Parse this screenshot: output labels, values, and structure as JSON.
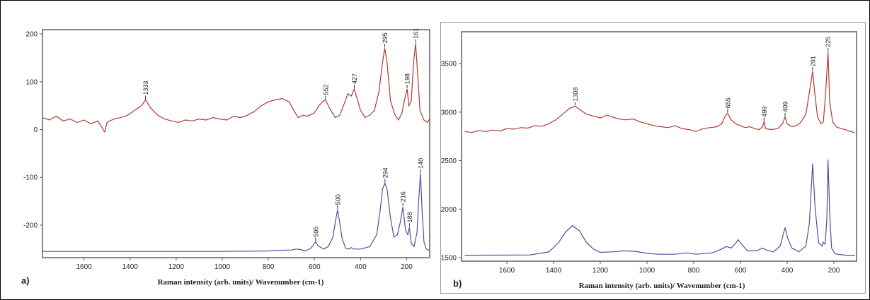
{
  "chart_data": [
    {
      "type": "line",
      "panel_label": "a)",
      "xlabel": "Raman intensity (arb. units)/ Wavenumber (cm-1)",
      "xlim": [
        1780,
        100
      ],
      "xticks": [
        1600,
        1400,
        1200,
        1000,
        800,
        600,
        400,
        200
      ],
      "ylim": [
        -268,
        209
      ],
      "yticks": [
        200,
        100,
        0,
        -100,
        -200
      ],
      "series": [
        {
          "color": "#b03a2e",
          "x": [
            1780,
            1750,
            1720,
            1690,
            1660,
            1630,
            1600,
            1570,
            1540,
            1510,
            1500,
            1470,
            1440,
            1410,
            1380,
            1350,
            1333,
            1310,
            1280,
            1250,
            1220,
            1190,
            1160,
            1130,
            1100,
            1070,
            1040,
            1010,
            980,
            950,
            920,
            890,
            860,
            830,
            800,
            770,
            740,
            710,
            690,
            670,
            650,
            630,
            600,
            580,
            565,
            552,
            535,
            510,
            490,
            470,
            455,
            440,
            427,
            415,
            400,
            380,
            360,
            340,
            320,
            305,
            295,
            285,
            270,
            250,
            235,
            220,
            210,
            198,
            190,
            180,
            170,
            161,
            150,
            142,
            125,
            110,
            100
          ],
          "values": [
            25,
            20,
            28,
            18,
            22,
            15,
            20,
            12,
            18,
            -5,
            15,
            22,
            25,
            30,
            40,
            50,
            62,
            45,
            30,
            22,
            18,
            15,
            20,
            18,
            22,
            20,
            25,
            22,
            20,
            28,
            25,
            30,
            38,
            50,
            58,
            62,
            65,
            58,
            40,
            25,
            30,
            28,
            35,
            50,
            58,
            62,
            45,
            25,
            30,
            55,
            75,
            70,
            85,
            65,
            40,
            25,
            30,
            40,
            80,
            140,
            170,
            140,
            60,
            30,
            20,
            35,
            60,
            85,
            50,
            60,
            140,
            180,
            100,
            40,
            20,
            15,
            22
          ]
        },
        {
          "color": "#5a4a9a",
          "x": [
            1780,
            1500,
            1000,
            800,
            780,
            700,
            680,
            660,
            640,
            620,
            605,
            595,
            585,
            560,
            540,
            520,
            510,
            500,
            490,
            480,
            465,
            450,
            440,
            430,
            400,
            360,
            330,
            315,
            305,
            294,
            285,
            270,
            255,
            240,
            228,
            216,
            205,
            195,
            188,
            180,
            168,
            155,
            148,
            140,
            133,
            125,
            115,
            100
          ],
          "values": [
            -255,
            -255,
            -255,
            -254,
            -253,
            -252,
            -250,
            -251,
            -254,
            -250,
            -242,
            -235,
            -243,
            -250,
            -245,
            -225,
            -195,
            -168,
            -195,
            -228,
            -248,
            -250,
            -247,
            -250,
            -250,
            -245,
            -220,
            -170,
            -125,
            -112,
            -125,
            -185,
            -225,
            -220,
            -195,
            -162,
            -210,
            -220,
            -205,
            -238,
            -245,
            -215,
            -150,
            -92,
            -170,
            -235,
            -250,
            -253
          ]
        }
      ],
      "annotations": [
        1333,
        552,
        427,
        295,
        198,
        161,
        595,
        500,
        294,
        216,
        188,
        140
      ]
    },
    {
      "type": "line",
      "panel_label": "b)",
      "xlabel": "Raman intensity (arb. units)/ Wavenumber (cm-1)",
      "xlim": [
        1794,
        103
      ],
      "xticks": [
        1600,
        1400,
        1200,
        1000,
        800,
        600,
        400,
        200
      ],
      "ylim": [
        1464,
        3828
      ],
      "yticks": [
        3500,
        3000,
        2500,
        2000,
        1500
      ],
      "series": [
        {
          "color": "#b03a2e",
          "x": [
            1780,
            1750,
            1720,
            1690,
            1660,
            1630,
            1600,
            1570,
            1540,
            1510,
            1480,
            1450,
            1420,
            1390,
            1360,
            1330,
            1308,
            1290,
            1260,
            1230,
            1200,
            1170,
            1150,
            1120,
            1090,
            1060,
            1030,
            1000,
            970,
            940,
            910,
            880,
            850,
            820,
            790,
            760,
            730,
            700,
            680,
            665,
            655,
            640,
            620,
            600,
            580,
            560,
            540,
            520,
            505,
            499,
            492,
            470,
            440,
            420,
            409,
            400,
            380,
            360,
            340,
            320,
            305,
            291,
            282,
            270,
            255,
            245,
            235,
            225,
            218,
            205,
            190,
            170,
            150,
            130,
            110
          ],
          "values": [
            2800,
            2790,
            2810,
            2800,
            2815,
            2805,
            2830,
            2825,
            2840,
            2835,
            2860,
            2855,
            2880,
            2920,
            2980,
            3040,
            3060,
            3030,
            2980,
            2960,
            2940,
            2970,
            2950,
            2930,
            2920,
            2930,
            2900,
            2880,
            2860,
            2850,
            2840,
            2860,
            2830,
            2820,
            2800,
            2830,
            2840,
            2850,
            2880,
            2960,
            2990,
            2920,
            2880,
            2860,
            2840,
            2850,
            2830,
            2820,
            2850,
            2900,
            2830,
            2820,
            2830,
            2880,
            2950,
            2880,
            2850,
            2860,
            2900,
            2980,
            3200,
            3420,
            3200,
            2950,
            2880,
            2900,
            3200,
            3620,
            3100,
            2900,
            2850,
            2830,
            2820,
            2800,
            2790
          ]
        },
        {
          "color": "#5a4a9a",
          "x": [
            1780,
            1500,
            1420,
            1380,
            1350,
            1320,
            1290,
            1260,
            1230,
            1200,
            1150,
            1100,
            1050,
            1000,
            950,
            880,
            830,
            790,
            720,
            680,
            660,
            640,
            620,
            610,
            595,
            570,
            530,
            505,
            490,
            460,
            430,
            409,
            398,
            380,
            350,
            320,
            305,
            291,
            280,
            265,
            250,
            245,
            238,
            230,
            225,
            218,
            210,
            195,
            150,
            110
          ],
          "values": [
            1525,
            1528,
            1560,
            1650,
            1760,
            1830,
            1780,
            1660,
            1590,
            1555,
            1560,
            1570,
            1565,
            1545,
            1535,
            1535,
            1550,
            1535,
            1550,
            1590,
            1615,
            1600,
            1650,
            1685,
            1640,
            1570,
            1570,
            1600,
            1580,
            1560,
            1620,
            1810,
            1700,
            1600,
            1560,
            1620,
            1850,
            2470,
            2000,
            1650,
            1620,
            1660,
            1640,
            1900,
            2510,
            1950,
            1600,
            1540,
            1525,
            1525
          ]
        }
      ],
      "annotations": [
        1308,
        655,
        499,
        409,
        291,
        225
      ]
    }
  ]
}
